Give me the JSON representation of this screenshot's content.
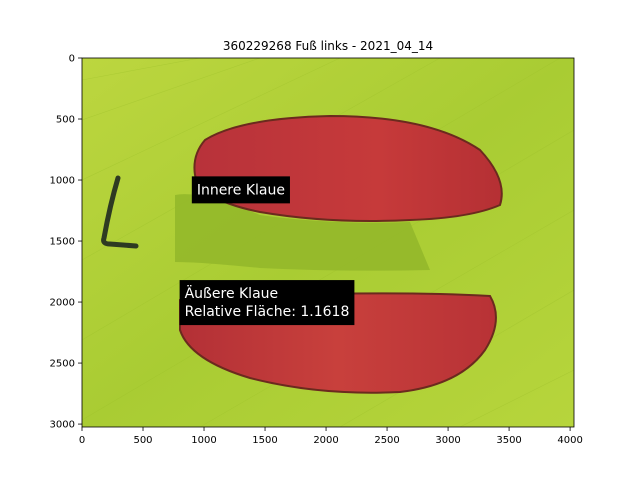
{
  "figure": {
    "title": "360229268 Fuß links - 2021_04_14",
    "xaxis": {
      "ticks": [
        0,
        500,
        1000,
        1500,
        2000,
        2500,
        3000,
        3500,
        4000
      ],
      "lim": [
        0,
        4032
      ]
    },
    "yaxis": {
      "ticks": [
        0,
        500,
        1000,
        1500,
        2000,
        2500,
        3000
      ],
      "lim": [
        3024,
        0
      ]
    }
  },
  "image": {
    "description_icon": "hoof-photo",
    "background_color": "#b5d33a",
    "overlay_color": "#c0392b",
    "marker_letter": "L"
  },
  "annotations": {
    "inner": {
      "label": "Innere Klaue",
      "x": 900,
      "y": 970
    },
    "outer": {
      "line1": "Äußere Klaue",
      "line2": "Relative Fläche: 1.1618",
      "x": 800,
      "y": 1820
    }
  }
}
